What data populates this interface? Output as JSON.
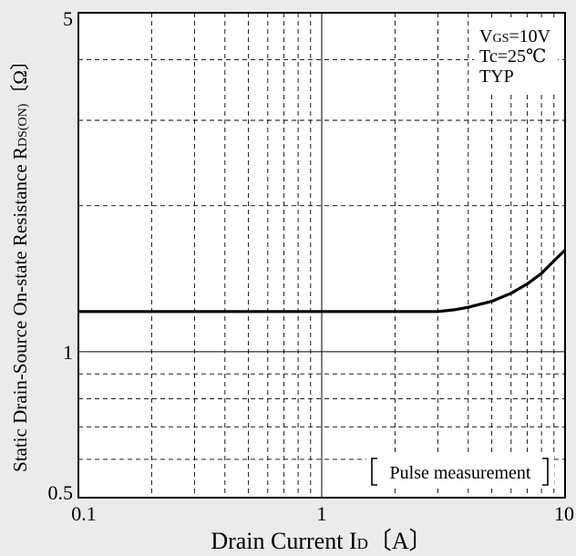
{
  "chart_data": {
    "type": "line",
    "xscale": "log",
    "yscale": "log",
    "xlim": [
      0.1,
      10
    ],
    "ylim": [
      0.5,
      5
    ],
    "xticks": [
      {
        "value": 0.1,
        "label": "0.1"
      },
      {
        "value": 1,
        "label": "1"
      },
      {
        "value": 10,
        "label": "10"
      }
    ],
    "yticks": [
      {
        "value": 0.5,
        "label": "0.5"
      },
      {
        "value": 1,
        "label": "1"
      },
      {
        "value": 5,
        "label": "5"
      }
    ],
    "xminor": [
      0.2,
      0.3,
      0.4,
      0.5,
      0.6,
      0.7,
      0.8,
      0.9,
      2,
      3,
      4,
      5,
      6,
      7,
      8,
      9
    ],
    "yminor": [
      0.6,
      0.7,
      0.8,
      0.9,
      2,
      3,
      4
    ],
    "xlabel": {
      "main": "Drain Current  I",
      "sub": "D",
      "unit": "〔A〕"
    },
    "ylabel": {
      "main": "Static Drain-Source On-state Resistance  R",
      "sub": "DS(ON)",
      "unit": "〔Ω〕"
    },
    "grid": true,
    "series": [
      {
        "color": "#000000",
        "points": [
          [
            0.1,
            1.21
          ],
          [
            0.5,
            1.21
          ],
          [
            1,
            1.21
          ],
          [
            2,
            1.21
          ],
          [
            3,
            1.21
          ],
          [
            3.5,
            1.22
          ],
          [
            4,
            1.235
          ],
          [
            5,
            1.27
          ],
          [
            6,
            1.32
          ],
          [
            7,
            1.38
          ],
          [
            8,
            1.45
          ],
          [
            9,
            1.54
          ],
          [
            10,
            1.62
          ]
        ]
      }
    ],
    "conditions": [
      {
        "main": "V",
        "sub": "GS",
        "rest": "=10V"
      },
      {
        "main": "Tc",
        "sub": "",
        "rest": "=25℃"
      },
      {
        "main": "TYP",
        "sub": "",
        "rest": ""
      }
    ],
    "note": "Pulse measurement"
  },
  "colors": {
    "background": "#ebebeb",
    "plot_area": "#ffffff",
    "grid": "#000000",
    "curve": "#000000"
  }
}
